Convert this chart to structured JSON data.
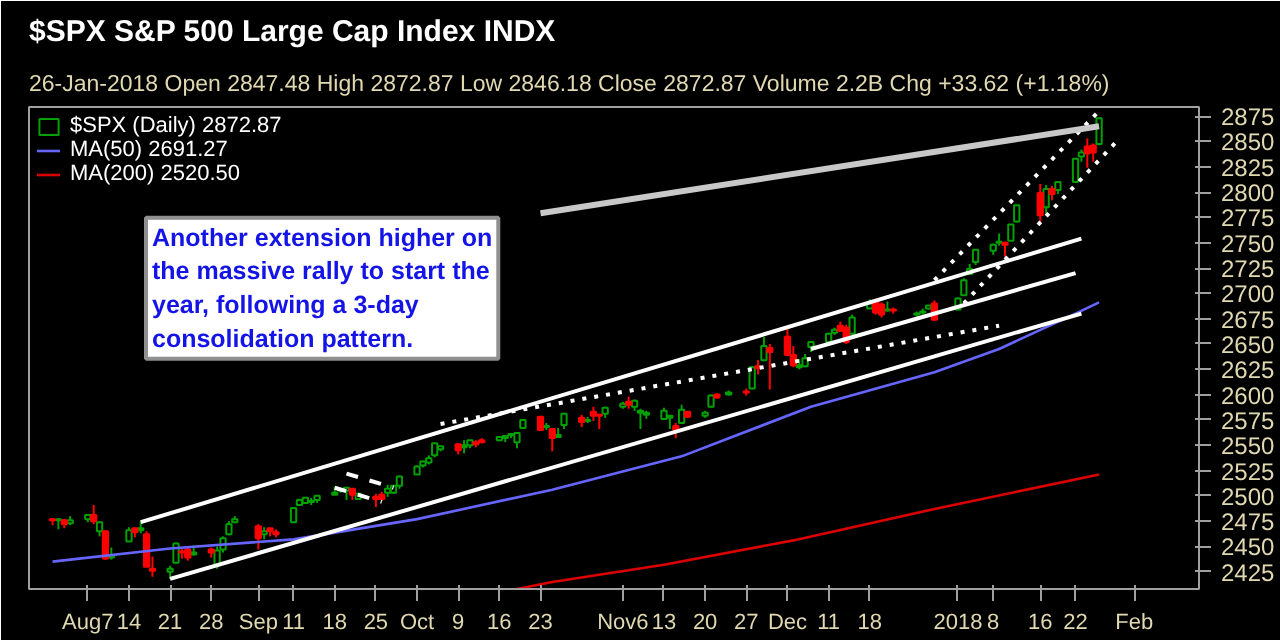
{
  "chart_data": {
    "type": "candlestick",
    "title": "$SPX S&P 500 Large Cap Index INDX",
    "subtitle": "26-Jan-2018  Open 2847.48  High 2872.87  Low 2846.18  Close 2872.87  Volume 2.2B  Chg +33.62 (+1.18%)",
    "annotations": [
      "Another extension higher on the massive rally to start the year, following a 3-day consolidation pattern."
    ],
    "xlim": [
      "2017-07-28",
      "2018-02-12"
    ],
    "ylim": [
      2408,
      2884
    ],
    "xticks": [
      {
        "value": "2017-08-07",
        "label": "Aug7"
      },
      {
        "value": "2017-08-14",
        "label": "14"
      },
      {
        "value": "2017-08-21",
        "label": "21"
      },
      {
        "value": "2017-08-28",
        "label": "28"
      },
      {
        "value": "2017-09-05",
        "label": "Sep"
      },
      {
        "value": "2017-09-11",
        "label": "11"
      },
      {
        "value": "2017-09-18",
        "label": "18"
      },
      {
        "value": "2017-09-25",
        "label": "25"
      },
      {
        "value": "2017-10-02",
        "label": "Oct"
      },
      {
        "value": "2017-10-09",
        "label": "9"
      },
      {
        "value": "2017-10-16",
        "label": "16"
      },
      {
        "value": "2017-10-23",
        "label": "23"
      },
      {
        "value": "2017-11-06",
        "label": "Nov6"
      },
      {
        "value": "2017-11-13",
        "label": "13"
      },
      {
        "value": "2017-11-20",
        "label": "20"
      },
      {
        "value": "2017-11-27",
        "label": "27"
      },
      {
        "value": "2017-12-04",
        "label": "Dec"
      },
      {
        "value": "2017-12-11",
        "label": "11"
      },
      {
        "value": "2017-12-18",
        "label": "18"
      },
      {
        "value": "2018-01-02",
        "label": "2018"
      },
      {
        "value": "2018-01-08",
        "label": "8"
      },
      {
        "value": "2018-01-16",
        "label": "16"
      },
      {
        "value": "2018-01-22",
        "label": "22"
      },
      {
        "value": "2018-02-01",
        "label": "Feb"
      }
    ],
    "yticks": [
      2425,
      2450,
      2475,
      2500,
      2525,
      2550,
      2575,
      2600,
      2625,
      2650,
      2675,
      2700,
      2725,
      2750,
      2775,
      2800,
      2825,
      2850,
      2875
    ],
    "legend": "top left",
    "series": [
      {
        "name": "$SPX (Daily) 2872.87",
        "color": "#00a000",
        "x": [
          "2017-08-02",
          "2017-08-04",
          "2017-08-07",
          "2017-08-09",
          "2017-08-11",
          "2017-08-14",
          "2017-08-16",
          "2017-08-21",
          "2017-08-22",
          "2017-08-25",
          "2017-08-29",
          "2017-08-30",
          "2017-08-31",
          "2017-09-01",
          "2017-09-06",
          "2017-09-11",
          "2017-09-12",
          "2017-09-13",
          "2017-09-14",
          "2017-09-15",
          "2017-09-18",
          "2017-09-19",
          "2017-09-20",
          "2017-09-22",
          "2017-09-27",
          "2017-09-28",
          "2017-09-29",
          "2017-10-02",
          "2017-10-03",
          "2017-10-04",
          "2017-10-05",
          "2017-10-06",
          "2017-10-10",
          "2017-10-11",
          "2017-10-16",
          "2017-10-17",
          "2017-10-18",
          "2017-10-19",
          "2017-10-20",
          "2017-10-24",
          "2017-10-26",
          "2017-10-27",
          "2017-10-31",
          "2017-11-03",
          "2017-11-06",
          "2017-11-08",
          "2017-11-09",
          "2017-11-10",
          "2017-11-13",
          "2017-11-14",
          "2017-11-16",
          "2017-11-20",
          "2017-11-21",
          "2017-11-24",
          "2017-11-28",
          "2017-11-30",
          "2017-12-06",
          "2017-12-07",
          "2017-12-08",
          "2017-12-11",
          "2017-12-12",
          "2017-12-15",
          "2017-12-18",
          "2017-12-21",
          "2017-12-26",
          "2017-12-27",
          "2017-12-28",
          "2018-01-02",
          "2018-01-03",
          "2018-01-04",
          "2018-01-05",
          "2018-01-08",
          "2018-01-09",
          "2018-01-11",
          "2018-01-12",
          "2018-01-17",
          "2018-01-19",
          "2018-01-22",
          "2018-01-23",
          "2018-01-26"
        ],
        "ohlc": [
          [
            2476,
            2478,
            2467,
            2477
          ],
          [
            2473,
            2480,
            2471,
            2476
          ],
          [
            2477,
            2481,
            2474,
            2481
          ],
          [
            2465,
            2475,
            2460,
            2474
          ],
          [
            2439,
            2449,
            2437,
            2441
          ],
          [
            2455,
            2469,
            2455,
            2466
          ],
          [
            2466,
            2475,
            2463,
            2468
          ],
          [
            2425,
            2431,
            2418,
            2428
          ],
          [
            2434,
            2454,
            2434,
            2453
          ],
          [
            2442,
            2451,
            2441,
            2444
          ],
          [
            2431,
            2450,
            2428,
            2446
          ],
          [
            2447,
            2460,
            2444,
            2458
          ],
          [
            2462,
            2475,
            2461,
            2472
          ],
          [
            2474,
            2480,
            2473,
            2477
          ],
          [
            2462,
            2469,
            2457,
            2465
          ],
          [
            2474,
            2489,
            2474,
            2488
          ],
          [
            2491,
            2497,
            2491,
            2496
          ],
          [
            2493,
            2498,
            2492,
            2498
          ],
          [
            2494,
            2498,
            2491,
            2495
          ],
          [
            2496,
            2500,
            2493,
            2500
          ],
          [
            2501,
            2509,
            2501,
            2503
          ],
          [
            2505,
            2508,
            2503,
            2506
          ],
          [
            2505,
            2508,
            2496,
            2508
          ],
          [
            2497,
            2503,
            2497,
            2502
          ],
          [
            2503,
            2511,
            2499,
            2507
          ],
          [
            2503,
            2510,
            2502,
            2510
          ],
          [
            2510,
            2520,
            2507,
            2519
          ],
          [
            2521,
            2530,
            2521,
            2529
          ],
          [
            2530,
            2535,
            2528,
            2534
          ],
          [
            2533,
            2540,
            2531,
            2537
          ],
          [
            2540,
            2552,
            2538,
            2552
          ],
          [
            2546,
            2549,
            2544,
            2549
          ],
          [
            2548,
            2555,
            2542,
            2550
          ],
          [
            2550,
            2555,
            2547,
            2555
          ],
          [
            2555,
            2559,
            2554,
            2558
          ],
          [
            2557,
            2560,
            2553,
            2559
          ],
          [
            2560,
            2562,
            2557,
            2561
          ],
          [
            2553,
            2563,
            2547,
            2562
          ],
          [
            2567,
            2575,
            2566,
            2575
          ],
          [
            2568,
            2572,
            2565,
            2569
          ],
          [
            2558,
            2567,
            2558,
            2560
          ],
          [
            2570,
            2582,
            2566,
            2581
          ],
          [
            2574,
            2578,
            2572,
            2575
          ],
          [
            2581,
            2588,
            2577,
            2587
          ],
          [
            2588,
            2593,
            2586,
            2591
          ],
          [
            2588,
            2595,
            2584,
            2594
          ],
          [
            2582,
            2586,
            2566,
            2584
          ],
          [
            2580,
            2584,
            2576,
            2582
          ],
          [
            2576,
            2587,
            2576,
            2584
          ],
          [
            2577,
            2579,
            2566,
            2579
          ],
          [
            2572,
            2590,
            2572,
            2585
          ],
          [
            2579,
            2584,
            2577,
            2582
          ],
          [
            2588,
            2600,
            2588,
            2599
          ],
          [
            2600,
            2604,
            2599,
            2602
          ],
          [
            2606,
            2628,
            2606,
            2627
          ],
          [
            2634,
            2657,
            2634,
            2648
          ],
          [
            2627,
            2635,
            2625,
            2629
          ],
          [
            2628,
            2640,
            2627,
            2636
          ],
          [
            2647,
            2652,
            2642,
            2652
          ],
          [
            2652,
            2660,
            2650,
            2660
          ],
          [
            2661,
            2666,
            2659,
            2664
          ],
          [
            2660,
            2679,
            2659,
            2676
          ],
          [
            2685,
            2694,
            2685,
            2690
          ],
          [
            2683,
            2692,
            2682,
            2684
          ],
          [
            2679,
            2682,
            2677,
            2680
          ],
          [
            2681,
            2685,
            2679,
            2682
          ],
          [
            2685,
            2688,
            2684,
            2688
          ],
          [
            2684,
            2696,
            2683,
            2695
          ],
          [
            2698,
            2715,
            2698,
            2713
          ],
          [
            2719,
            2729,
            2719,
            2724
          ],
          [
            2731,
            2743,
            2728,
            2743
          ],
          [
            2742,
            2749,
            2738,
            2748
          ],
          [
            2750,
            2759,
            2747,
            2751
          ],
          [
            2752,
            2768,
            2752,
            2768
          ],
          [
            2771,
            2787,
            2770,
            2787
          ],
          [
            2785,
            2807,
            2778,
            2803
          ],
          [
            2802,
            2810,
            2798,
            2810
          ],
          [
            2810,
            2833,
            2809,
            2833
          ],
          [
            2835,
            2842,
            2830,
            2839
          ],
          [
            2847.48,
            2872.87,
            2846.18,
            2872.87
          ]
        ]
      },
      {
        "color": "#ff0000",
        "x": [
          "2017-08-01",
          "2017-08-03",
          "2017-08-08",
          "2017-08-10",
          "2017-08-15",
          "2017-08-17",
          "2017-08-18",
          "2017-08-23",
          "2017-08-24",
          "2017-08-28",
          "2017-09-05",
          "2017-09-07",
          "2017-09-08",
          "2017-09-21",
          "2017-09-25",
          "2017-09-26",
          "2017-10-09",
          "2017-10-12",
          "2017-10-13",
          "2017-10-23",
          "2017-10-25",
          "2017-10-30",
          "2017-11-01",
          "2017-11-02",
          "2017-11-07",
          "2017-11-15",
          "2017-11-17",
          "2017-11-22",
          "2017-11-27",
          "2017-11-29",
          "2017-12-01",
          "2017-12-04",
          "2017-12-05",
          "2017-12-13",
          "2017-12-14",
          "2017-12-19",
          "2017-12-20",
          "2017-12-22",
          "2017-12-29",
          "2018-01-10",
          "2018-01-16",
          "2018-01-18",
          "2018-01-24",
          "2018-01-25"
        ],
        "ohlc": [
          [
            2477,
            2478,
            2471,
            2476
          ],
          [
            2476,
            2477,
            2468,
            2472
          ],
          [
            2481,
            2491,
            2472,
            2475
          ],
          [
            2465,
            2466,
            2437,
            2438
          ],
          [
            2468,
            2468,
            2459,
            2464
          ],
          [
            2462,
            2465,
            2430,
            2430
          ],
          [
            2428,
            2440,
            2420,
            2426
          ],
          [
            2445,
            2448,
            2438,
            2444
          ],
          [
            2447,
            2450,
            2436,
            2439
          ],
          [
            2447,
            2449,
            2439,
            2444
          ],
          [
            2470,
            2472,
            2447,
            2458
          ],
          [
            2468,
            2468,
            2460,
            2465
          ],
          [
            2464,
            2467,
            2459,
            2462
          ],
          [
            2507,
            2507,
            2496,
            2501
          ],
          [
            2499,
            2502,
            2489,
            2497
          ],
          [
            2501,
            2504,
            2495,
            2497
          ],
          [
            2551,
            2552,
            2541,
            2545
          ],
          [
            2553,
            2555,
            2548,
            2551
          ],
          [
            2555,
            2557,
            2552,
            2553
          ],
          [
            2578,
            2578,
            2564,
            2565
          ],
          [
            2566,
            2567,
            2544,
            2557
          ],
          [
            2577,
            2580,
            2568,
            2573
          ],
          [
            2583,
            2588,
            2574,
            2579
          ],
          [
            2580,
            2581,
            2566,
            2579
          ],
          [
            2593,
            2598,
            2586,
            2590
          ],
          [
            2569,
            2572,
            2557,
            2565
          ],
          [
            2583,
            2583,
            2577,
            2578
          ],
          [
            2600,
            2601,
            2596,
            2597
          ],
          [
            2603,
            2606,
            2599,
            2602
          ],
          [
            2628,
            2634,
            2620,
            2626
          ],
          [
            2646,
            2650,
            2605,
            2642
          ],
          [
            2657,
            2665,
            2639,
            2639
          ],
          [
            2639,
            2648,
            2627,
            2629
          ],
          [
            2668,
            2672,
            2662,
            2663
          ],
          [
            2666,
            2669,
            2650,
            2652
          ],
          [
            2692,
            2694,
            2679,
            2681
          ],
          [
            2689,
            2691,
            2676,
            2679
          ],
          [
            2684,
            2686,
            2680,
            2683
          ],
          [
            2690,
            2693,
            2673,
            2674
          ],
          [
            2750,
            2751,
            2736,
            2748
          ],
          [
            2799,
            2808,
            2769,
            2777
          ],
          [
            2803,
            2806,
            2792,
            2798
          ],
          [
            2845,
            2853,
            2824,
            2838
          ],
          [
            2846,
            2848,
            2830,
            2839
          ]
        ]
      },
      {
        "name": "MA(50) 2691.27",
        "type": "line",
        "color": "#6666ff",
        "x": [
          "2017-08-01",
          "2017-08-21",
          "2017-09-11",
          "2017-10-02",
          "2017-10-25",
          "2017-11-16",
          "2017-12-08",
          "2017-12-29",
          "2018-01-09",
          "2018-01-22",
          "2018-01-26"
        ],
        "values": [
          2435,
          2448,
          2457,
          2477,
          2506,
          2539,
          2588,
          2622,
          2645,
          2680,
          2691
        ]
      },
      {
        "name": "MA(200) 2520.50",
        "type": "line",
        "color": "#dd0000",
        "x": [
          "2017-10-19",
          "2017-10-25",
          "2017-11-13",
          "2017-12-05",
          "2017-12-29",
          "2018-01-26"
        ],
        "values": [
          2408,
          2415,
          2432,
          2456,
          2487,
          2521
        ]
      },
      {
        "type": "line",
        "color": "#ffffff",
        "line_style": "solid",
        "x": [
          "2017-08-16",
          "2018-01-23"
        ],
        "values": [
          2474,
          2754
        ]
      },
      {
        "type": "line",
        "color": "#ffffff",
        "line_style": "solid",
        "x": [
          "2017-08-21",
          "2018-01-23"
        ],
        "values": [
          2418,
          2680
        ]
      },
      {
        "type": "line",
        "color": "#ffffff",
        "line_style": "solid",
        "x": [
          "2017-12-08",
          "2018-01-22"
        ],
        "values": [
          2645,
          2720
        ]
      },
      {
        "type": "line",
        "color": "#ffffff",
        "line_style": "dotted",
        "x": [
          "2017-10-06",
          "2018-01-09"
        ],
        "values": [
          2571,
          2668
        ]
      },
      {
        "type": "line",
        "color": "#ffffff",
        "line_style": "dashed",
        "x": [
          "2017-09-20",
          "2017-09-28"
        ],
        "values": [
          2522,
          2508
        ]
      },
      {
        "type": "line",
        "color": "#ffffff",
        "line_style": "dashed",
        "x": [
          "2017-09-18",
          "2017-09-26"
        ],
        "values": [
          2508,
          2494
        ]
      },
      {
        "type": "line",
        "color": "#ffffff",
        "line_style": "dotted",
        "x": [
          "2017-12-29",
          "2018-01-26"
        ],
        "values": [
          2713,
          2880
        ]
      },
      {
        "type": "line",
        "color": "#ffffff",
        "line_style": "dotted",
        "x": [
          "2018-01-03",
          "2018-01-29"
        ],
        "values": [
          2690,
          2850
        ]
      },
      {
        "type": "line",
        "color": "#c8c8c8",
        "line_style": "solid",
        "x": [
          "2017-10-23",
          "2018-01-26"
        ],
        "values": [
          2779,
          2865
        ]
      }
    ]
  }
}
